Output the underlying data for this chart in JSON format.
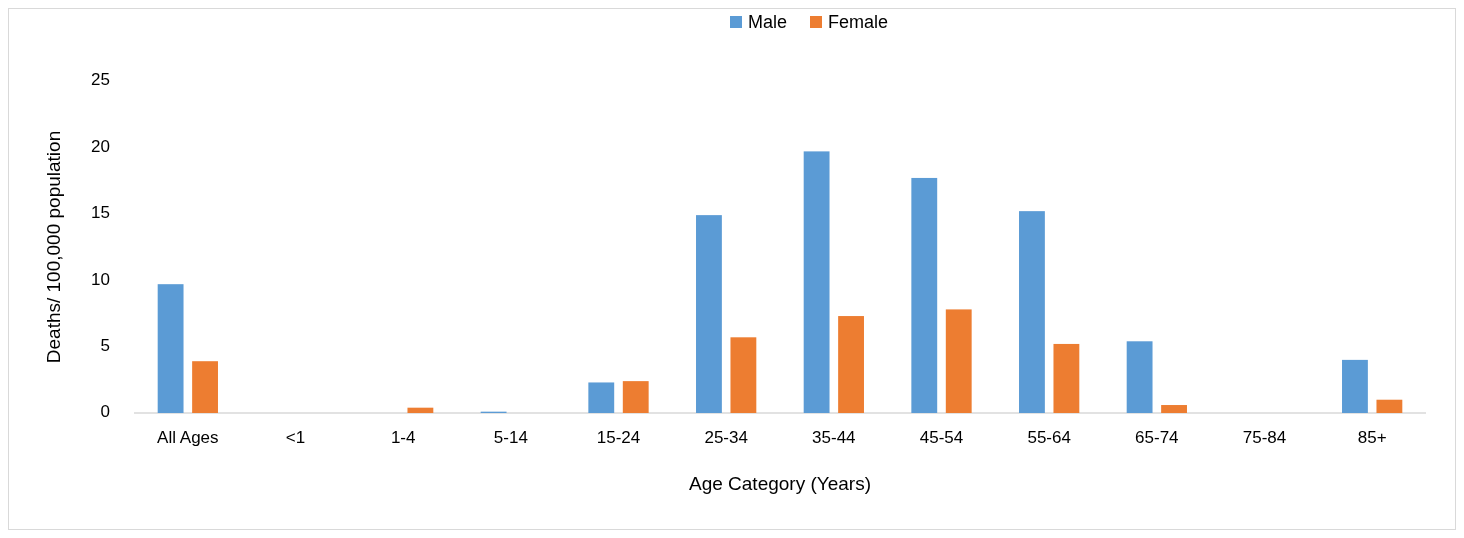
{
  "chart_data": {
    "type": "bar",
    "xlabel": "Age Category (Years)",
    "ylabel": "Deaths/ 100,000 population",
    "categories": [
      "All Ages",
      "<1",
      "1-4",
      "5-14",
      "15-24",
      "25-34",
      "35-44",
      "45-54",
      "55-64",
      "65-74",
      "75-84",
      "85+"
    ],
    "series": [
      {
        "name": "Male",
        "color": "#5b9bd5",
        "values": [
          9.7,
          0,
          0,
          0.1,
          2.3,
          14.9,
          19.7,
          17.7,
          15.2,
          5.4,
          0,
          4.0
        ]
      },
      {
        "name": "Female",
        "color": "#ed7d31",
        "values": [
          3.9,
          0,
          0.4,
          0,
          2.4,
          5.7,
          7.3,
          7.8,
          5.2,
          0.6,
          0,
          1.0
        ]
      }
    ],
    "ylim": [
      0,
      25
    ],
    "yticks": [
      0,
      5,
      10,
      15,
      20,
      25
    ],
    "grid": false,
    "legend": "top"
  }
}
